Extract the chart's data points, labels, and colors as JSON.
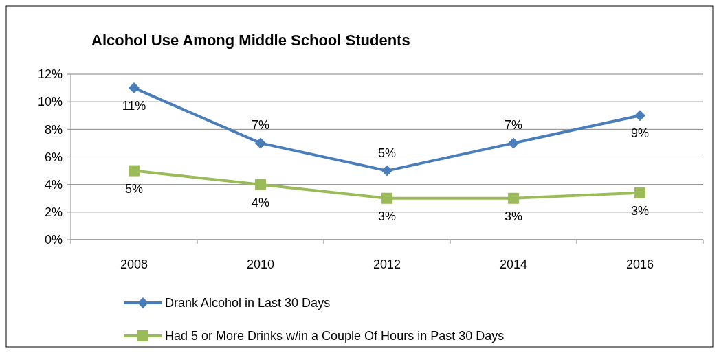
{
  "chart_data": {
    "type": "line",
    "title": "Alcohol Use Among Middle School Students",
    "categories": [
      "2008",
      "2010",
      "2012",
      "2014",
      "2016"
    ],
    "series": [
      {
        "name": "Drank Alcohol in Last 30 Days",
        "color": "#4a7ebb",
        "marker": "diamond",
        "values": [
          11,
          7,
          5,
          7,
          9
        ],
        "value_labels": [
          "11%",
          "7%",
          "5%",
          "7%",
          "9%"
        ]
      },
      {
        "name": "Had 5 or More Drinks w/in a Couple Of Hours in Past 30 Days",
        "color": "#9bbb59",
        "marker": "square",
        "values": [
          5,
          4,
          3,
          3,
          3.4
        ],
        "value_labels": [
          "5%",
          "4%",
          "3%",
          "3%",
          "3%"
        ]
      }
    ],
    "ylim": [
      0,
      12
    ],
    "yticks": [
      {
        "value": 0,
        "label": "0%"
      },
      {
        "value": 2,
        "label": "2%"
      },
      {
        "value": 4,
        "label": "4%"
      },
      {
        "value": 6,
        "label": "6%"
      },
      {
        "value": 8,
        "label": "8%"
      },
      {
        "value": 10,
        "label": "10%"
      },
      {
        "value": 12,
        "label": "12%"
      }
    ],
    "grid": "y",
    "legend": "bottom"
  }
}
